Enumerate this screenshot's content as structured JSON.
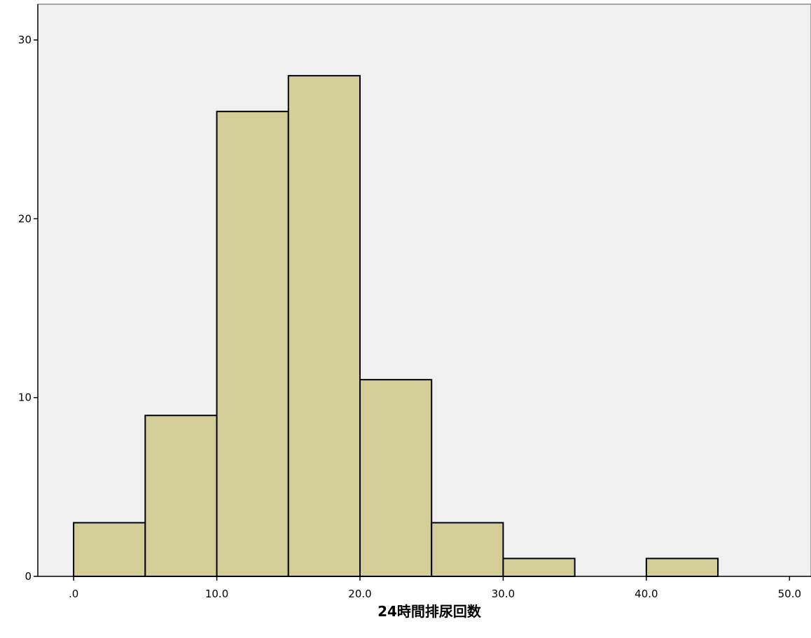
{
  "chart_data": {
    "type": "bar",
    "subtype": "histogram",
    "title": "",
    "xlabel": "24時間排尿回数",
    "ylabel": "",
    "bin_width": 5,
    "bins": [
      {
        "start": 0,
        "end": 5,
        "count": 3
      },
      {
        "start": 5,
        "end": 10,
        "count": 9
      },
      {
        "start": 10,
        "end": 15,
        "count": 26
      },
      {
        "start": 15,
        "end": 20,
        "count": 28
      },
      {
        "start": 20,
        "end": 25,
        "count": 11
      },
      {
        "start": 25,
        "end": 30,
        "count": 3
      },
      {
        "start": 30,
        "end": 35,
        "count": 1
      },
      {
        "start": 40,
        "end": 45,
        "count": 1
      }
    ],
    "xlim": [
      -2.5,
      51.5
    ],
    "ylim": [
      0,
      32
    ],
    "x_ticks": [
      0,
      10,
      20,
      30,
      40,
      50
    ],
    "x_tick_labels": [
      ".0",
      "10.0",
      "20.0",
      "30.0",
      "40.0",
      "50.0"
    ],
    "y_ticks": [
      0,
      10,
      20,
      30
    ],
    "y_tick_labels": [
      "0",
      "10",
      "20",
      "30"
    ],
    "grid": false,
    "legend": "none",
    "colors": {
      "plot_background": "#f0f0f0",
      "bar_fill": "#d3ce97",
      "bar_stroke": "#000000"
    }
  }
}
